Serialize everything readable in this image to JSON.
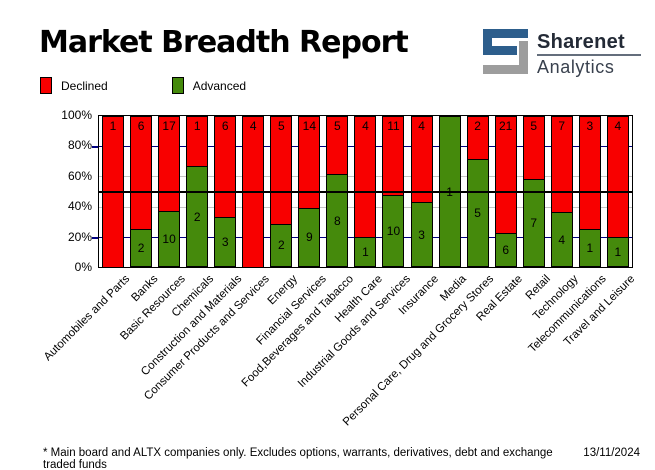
{
  "header": {
    "title": "Market Breadth Report",
    "logo": {
      "line1": "Sharenet",
      "line2": "Analytics",
      "blue": "#2d5e8c",
      "gray": "#9d9d9d"
    }
  },
  "legend": {
    "declined": {
      "label": "Declined",
      "color": "#f80000"
    },
    "advanced": {
      "label": "Advanced",
      "color": "#458a0c"
    }
  },
  "colors": {
    "declined": "#f80000",
    "advanced": "#458a0c",
    "grid_major": "#000080",
    "grid_minor": "#c4c4c4",
    "half_line": "#000000"
  },
  "chart_data": {
    "type": "bar",
    "stacked_percent": true,
    "title": "Market Breadth Report",
    "categories": [
      "Automobiles and Parts",
      "Banks",
      "Basic Resources",
      "Chemicals",
      "Construction and Materials",
      "Consumer Products and Services",
      "Energy",
      "Financial Services",
      "Food,Beverages and Tabacco",
      "Health Care",
      "Industrial Goods and Services",
      "Insurance",
      "Media",
      "Personal Care, Drug and Grocery Stores",
      "Real Estate",
      "Retail",
      "Technology",
      "Telecommunications",
      "Travel and Leisure"
    ],
    "series": [
      {
        "name": "Declined",
        "color": "#f80000",
        "values": [
          1,
          6,
          17,
          1,
          6,
          4,
          5,
          14,
          5,
          4,
          11,
          4,
          0,
          2,
          21,
          5,
          7,
          3,
          4
        ]
      },
      {
        "name": "Advanced",
        "color": "#458a0c",
        "values": [
          0,
          2,
          10,
          2,
          3,
          0,
          2,
          9,
          8,
          1,
          10,
          3,
          1,
          5,
          6,
          7,
          4,
          1,
          1
        ]
      }
    ],
    "y_ticks": [
      "0%",
      "20%",
      "40%",
      "60%",
      "80%",
      "100%"
    ],
    "ylim": [
      0,
      100
    ],
    "grid": true,
    "legend_position": "top-left"
  },
  "footer": {
    "note": "* Main board and ALTX companies only. Excludes options, warrants, derivatives, debt and exchange traded funds",
    "date": "13/11/2024"
  }
}
